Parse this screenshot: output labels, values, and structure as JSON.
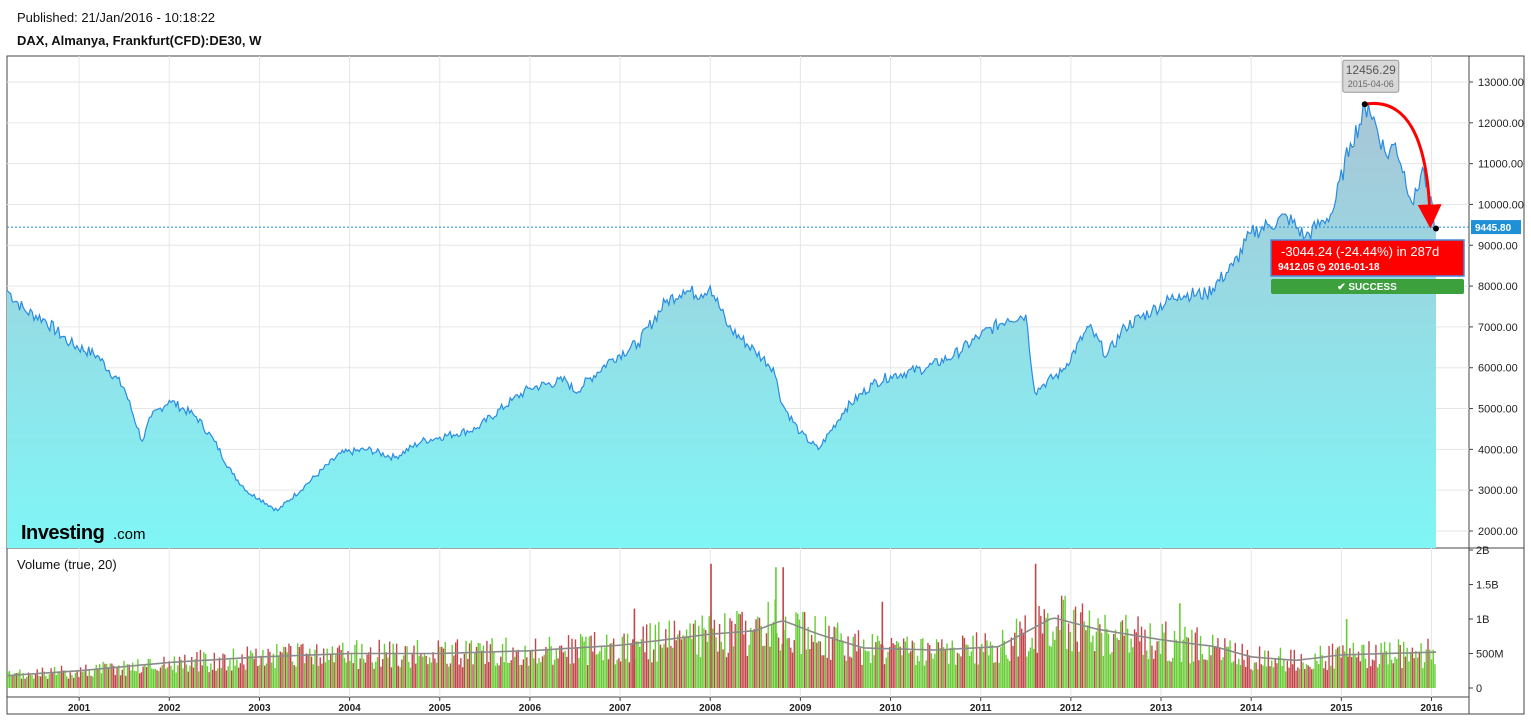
{
  "header": {
    "published": "Published: 21/Jan/2016 - 10:18:22",
    "symbol": "DAX, Almanya, Frankfurt(CFD):DE30, W"
  },
  "branding": {
    "logo_text": "Investing",
    "logo_suffix": ".com"
  },
  "colors": {
    "line": "#2a8ce0",
    "area_top": "#a8c7d8",
    "area_bottom": "#7ff6f6",
    "arrow": "#ff0000",
    "success": "#3ca13c",
    "price_tag": "#1e90d8",
    "vol_up": "#66cc33",
    "vol_down": "#c2454a",
    "vol_ma": "#8a8a8a"
  },
  "chart_data": [
    {
      "type": "area",
      "ylim": [
        1700,
        13400
      ],
      "yticks": [
        "2000.00",
        "3000.00",
        "4000.00",
        "5000.00",
        "6000.00",
        "7000.00",
        "8000.00",
        "9000.00",
        "10000.00",
        "11000.00",
        "12000.00",
        "13000.00"
      ],
      "xticks": [
        "2001",
        "2002",
        "2003",
        "2004",
        "2005",
        "2006",
        "2007",
        "2008",
        "2009",
        "2010",
        "2011",
        "2012",
        "2013",
        "2014",
        "2015",
        "2016"
      ],
      "x_start": 2000.2,
      "x_end": 2016.05,
      "series": [
        {
          "x": [
            2000.2,
            2000.4,
            2000.6,
            2000.9,
            2001.2,
            2001.5,
            2001.7,
            2001.8,
            2002.0,
            2002.3,
            2002.5,
            2002.7,
            2002.9,
            2003.0,
            2003.2,
            2003.5,
            2003.9,
            2004.2,
            2004.5,
            2004.8,
            2005.0,
            2005.4,
            2005.8,
            2006.0,
            2006.4,
            2006.5,
            2006.9,
            2007.2,
            2007.5,
            2007.7,
            2007.9,
            2008.0,
            2008.2,
            2008.5,
            2008.7,
            2008.8,
            2009.0,
            2009.2,
            2009.5,
            2009.8,
            2010.0,
            2010.4,
            2010.7,
            2011.0,
            2011.3,
            2011.5,
            2011.6,
            2011.7,
            2011.9,
            2012.2,
            2012.4,
            2012.6,
            2012.9,
            2013.2,
            2013.5,
            2013.8,
            2014.0,
            2014.2,
            2014.4,
            2014.6,
            2014.8,
            2014.9,
            2015.1,
            2015.3,
            2015.5,
            2015.6,
            2015.8,
            2015.9,
            2016.05
          ],
          "y": [
            7900,
            7400,
            7200,
            6600,
            6300,
            5500,
            4200,
            4800,
            5200,
            4800,
            4200,
            3400,
            2900,
            2800,
            2500,
            3100,
            3900,
            4000,
            3800,
            4200,
            4300,
            4500,
            5200,
            5500,
            5700,
            5400,
            6200,
            6600,
            7600,
            7900,
            7800,
            8000,
            7000,
            6400,
            6000,
            5100,
            4400,
            4000,
            5000,
            5600,
            5800,
            6000,
            6300,
            6800,
            7200,
            7300,
            5400,
            5600,
            5900,
            7000,
            6300,
            7000,
            7400,
            7800,
            7800,
            8500,
            9300,
            9500,
            9700,
            9200,
            9600,
            9800,
            11500,
            12456.29,
            11200,
            11500,
            10000,
            10900,
            9412.05
          ]
        }
      ],
      "last_price": "9445.80",
      "annotation": {
        "peak_value": "12456.29",
        "peak_date": "2015-04-06",
        "peak_x": 2015.26,
        "peak_y": 12456.29,
        "end_x": 2016.05,
        "end_y": 9412.05,
        "change_text": "-3044.24 (-24.44%) in 287d",
        "end_label": "9412.05  ◷ 2016-01-18",
        "status": "✔ SUCCESS"
      }
    },
    {
      "type": "bar",
      "title": "Volume (true, 20)",
      "ylim": [
        0,
        2000000000
      ],
      "yticks": [
        {
          "v": 0,
          "label": "0"
        },
        {
          "v": 500000000,
          "label": "500M"
        },
        {
          "v": 1000000000,
          "label": "1B"
        },
        {
          "v": 1500000000,
          "label": "1.5B"
        },
        {
          "v": 2000000000,
          "label": "2B"
        }
      ],
      "x_start": 2000.2,
      "x_end": 2016.05,
      "ma_profile": {
        "x": [
          2000.2,
          2001.0,
          2002.0,
          2003.0,
          2004.0,
          2005.0,
          2006.0,
          2007.0,
          2007.5,
          2008.0,
          2008.5,
          2008.8,
          2009.2,
          2009.7,
          2010.5,
          2011.2,
          2011.8,
          2012.3,
          2013.0,
          2013.6,
          2014.0,
          2014.5,
          2015.0,
          2015.5,
          2016.05
        ],
        "y": [
          180000000,
          250000000,
          370000000,
          450000000,
          500000000,
          500000000,
          540000000,
          620000000,
          700000000,
          780000000,
          830000000,
          980000000,
          780000000,
          580000000,
          550000000,
          600000000,
          1020000000,
          850000000,
          700000000,
          600000000,
          450000000,
          400000000,
          480000000,
          500000000,
          520000000
        ]
      },
      "spikes": [
        {
          "x": 2007.15,
          "v": 1150000000,
          "up": false
        },
        {
          "x": 2008.0,
          "v": 1800000000,
          "up": false
        },
        {
          "x": 2008.72,
          "v": 1750000000,
          "up": true
        },
        {
          "x": 2008.8,
          "v": 1750000000,
          "up": false
        },
        {
          "x": 2009.9,
          "v": 1250000000,
          "up": false
        },
        {
          "x": 2011.6,
          "v": 1800000000,
          "up": false
        },
        {
          "x": 2013.2,
          "v": 1230000000,
          "up": true
        },
        {
          "x": 2015.05,
          "v": 1000000000,
          "up": true
        }
      ]
    }
  ]
}
